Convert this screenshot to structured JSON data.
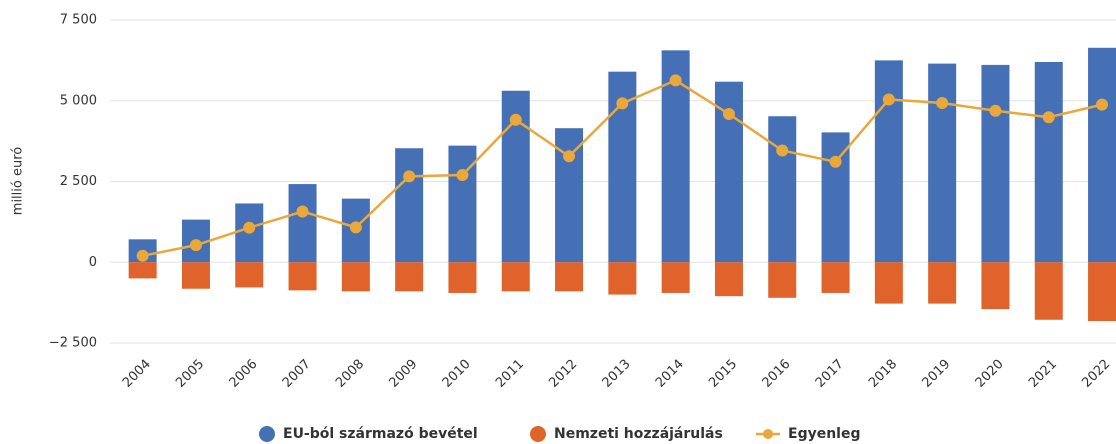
{
  "chart_data": {
    "type": "bar",
    "y_label": "millió euró",
    "categories": [
      "2004",
      "2005",
      "2006",
      "2007",
      "2008",
      "2009",
      "2010",
      "2011",
      "2012",
      "2013",
      "2014",
      "2015",
      "2016",
      "2017",
      "2018",
      "2019",
      "2020",
      "2021",
      "2022"
    ],
    "series": [
      {
        "name": "EU-ból származó bevétel",
        "color": "#4570b6",
        "type": "bar",
        "values": [
          710,
          1320,
          1820,
          2420,
          1970,
          3530,
          3610,
          5310,
          4150,
          5900,
          6560,
          5590,
          4520,
          4020,
          6250,
          6150,
          6110,
          6200,
          6640
        ]
      },
      {
        "name": "Nemzeti hozzájárulás",
        "color": "#e0632b",
        "type": "bar",
        "values": [
          -500,
          -820,
          -780,
          -870,
          -900,
          -900,
          -950,
          -900,
          -900,
          -1000,
          -950,
          -1050,
          -1100,
          -950,
          -1280,
          -1280,
          -1450,
          -1780,
          -1820
        ]
      },
      {
        "name": "Egyenleg",
        "color": "#eaa83a",
        "type": "line",
        "values": [
          200,
          530,
          1070,
          1570,
          1080,
          2660,
          2700,
          4410,
          3280,
          4920,
          5630,
          4590,
          3460,
          3110,
          5040,
          4930,
          4690,
          4490,
          4880
        ]
      }
    ],
    "ylim": [
      -2500,
      7500
    ],
    "yticks": [
      {
        "value": -2500,
        "label": "−2 500"
      },
      0,
      {
        "value": 2500,
        "label": "2 500"
      },
      {
        "value": 5000,
        "label": "5 000"
      },
      {
        "value": 7500,
        "label": "7 500"
      }
    ],
    "grid": true,
    "legend": "bottom"
  }
}
